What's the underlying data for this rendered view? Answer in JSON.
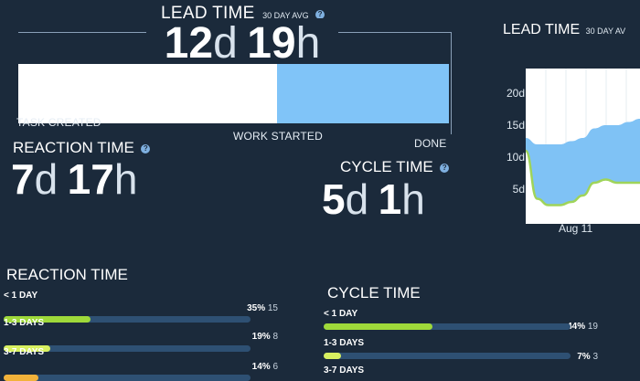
{
  "lead_time": {
    "title": "LEAD TIME",
    "subtitle": "30 DAY AVG",
    "help": "?",
    "days": "12",
    "days_unit": "d",
    "hours": "19",
    "hours_unit": "h",
    "stages": {
      "start": "TASK CREATED",
      "middle": "WORK STARTED",
      "end": "DONE"
    },
    "reaction_fraction": 0.6
  },
  "reaction_time": {
    "title": "REACTION TIME",
    "help": "?",
    "days": "7",
    "days_unit": "d",
    "hours": "17",
    "hours_unit": "h"
  },
  "cycle_time": {
    "title": "CYCLE TIME",
    "help": "?",
    "days": "5",
    "days_unit": "d",
    "hours": "1",
    "hours_unit": "h"
  },
  "chart_card": {
    "title": "LEAD TIME",
    "subtitle": "30 DAY AV"
  },
  "chart_data": {
    "type": "area",
    "y_ticks": [
      "20d",
      "15d",
      "10d",
      "5d"
    ],
    "x_ticks": [
      "Aug 11"
    ],
    "ylim": [
      0,
      22
    ],
    "series": [
      {
        "values": [
          13,
          12,
          12,
          12,
          12.5,
          13,
          14.5,
          15,
          15,
          15.5,
          16
        ]
      },
      {
        "values": [
          11,
          3.5,
          2.5,
          2.5,
          3,
          4,
          6,
          6.5,
          6,
          6,
          6
        ]
      }
    ],
    "colors": [
      "#7fc2f5",
      "#9fd45a"
    ]
  },
  "reaction_breakdown": {
    "title": "REACTION TIME",
    "rows": [
      {
        "label": "< 1 DAY",
        "pct": "35%",
        "count": "15",
        "fraction": 0.35,
        "color": "#9fd93a"
      },
      {
        "label": "1-3 DAYS",
        "pct": "19%",
        "count": "8",
        "fraction": 0.19,
        "color": "#d8f060"
      },
      {
        "label": "3-7 DAYS",
        "pct": "14%",
        "count": "6",
        "fraction": 0.14,
        "color": "#f2b23a"
      }
    ]
  },
  "cycle_breakdown": {
    "title": "CYCLE TIME",
    "rows": [
      {
        "label": "< 1 DAY",
        "pct": "44%",
        "count": "19",
        "fraction": 0.44,
        "color": "#9fd93a"
      },
      {
        "label": "1-3 DAYS",
        "pct": "7%",
        "count": "3",
        "fraction": 0.07,
        "color": "#d8f060"
      },
      {
        "label": "3-7 DAYS",
        "pct": "",
        "count": "",
        "fraction": 0,
        "color": "#f2b23a"
      }
    ]
  }
}
